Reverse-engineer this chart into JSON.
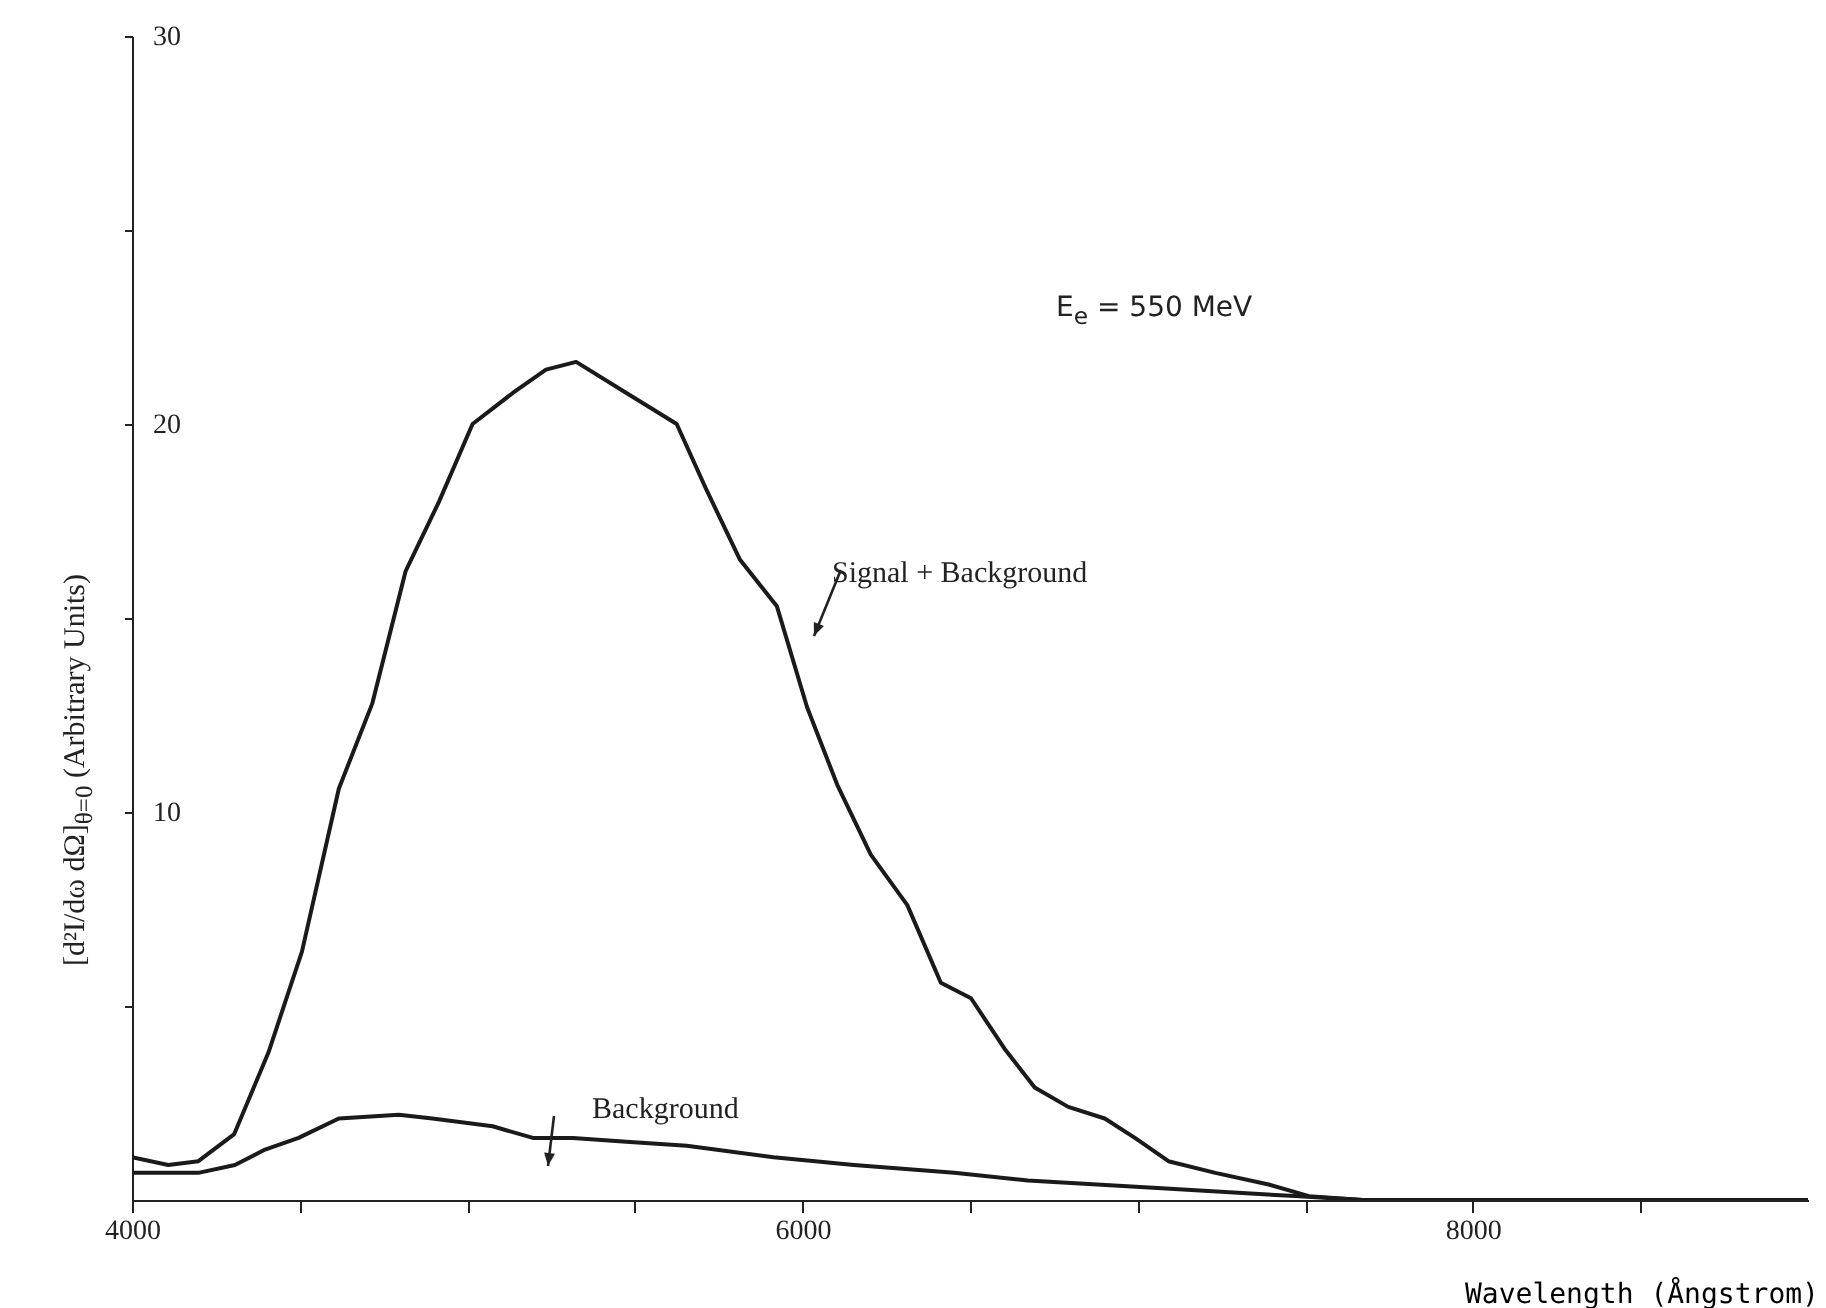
{
  "chart_data": {
    "type": "line",
    "xlabel": "Wavelength (Ångstrom)",
    "ylabel": "[d²I/dω dΩ]$_{θ=0}$ (Arbitrary Units)",
    "annotations": [
      "E$_{e}$ = 550 MeV"
    ],
    "xlim": [
      4000,
      9000
    ],
    "ylim": [
      0,
      30
    ],
    "xticks": [
      4000,
      {
        "value": 4500,
        "label": null
      },
      {
        "value": 5000,
        "label": null
      },
      {
        "value": 5500,
        "label": null
      },
      6000,
      {
        "value": 6500,
        "label": null
      },
      {
        "value": 7000,
        "label": null
      },
      {
        "value": 7500,
        "label": null
      },
      8000,
      {
        "value": 8500,
        "label": null
      }
    ],
    "yticks": [
      {
        "value": 5,
        "label": null
      },
      10,
      {
        "value": 15,
        "label": null
      },
      20,
      {
        "value": 25,
        "label": null
      },
      30
    ],
    "marker": "none",
    "line_style": "solid",
    "series": [
      {
        "name": "Signal + Background",
        "color": "#1a1a1a",
        "x": [
          4000,
          4108,
          4198,
          4305,
          4407,
          4507,
          4617,
          4717,
          4816,
          4916,
          5016,
          5136,
          5235,
          5325,
          5475,
          5625,
          5714,
          5814,
          5924,
          6014,
          6104,
          6204,
          6313,
          6413,
          6503,
          6603,
          6693,
          6793,
          6902,
          6992,
          7092,
          7232,
          7391,
          7511,
          7671,
          8000,
          8500,
          9000
        ],
        "values": [
          1.1,
          0.9,
          1.0,
          1.7,
          3.8,
          6.4,
          10.6,
          12.8,
          16.2,
          18.0,
          20.0,
          20.8,
          21.4,
          21.6,
          20.8,
          20.0,
          18.3,
          16.5,
          15.3,
          12.7,
          10.7,
          8.9,
          7.6,
          5.6,
          5.2,
          3.9,
          2.9,
          2.4,
          2.1,
          1.6,
          1.0,
          0.7,
          0.4,
          0.1,
          0,
          0,
          0,
          0
        ]
      },
      {
        "name": "Background",
        "color": "#1a1a1a",
        "x": [
          4000,
          4198,
          4307,
          4397,
          4497,
          4617,
          4796,
          4896,
          5076,
          5196,
          5315,
          5475,
          5655,
          5914,
          6154,
          6453,
          6673,
          7072,
          7471,
          7671,
          8000,
          8500,
          9000
        ],
        "values": [
          0.7,
          0.7,
          0.9,
          1.3,
          1.6,
          2.1,
          2.2,
          2.1,
          1.9,
          1.6,
          1.6,
          1.5,
          1.4,
          1.1,
          0.9,
          0.7,
          0.5,
          0.3,
          0.1,
          0,
          0,
          0,
          0
        ]
      }
    ]
  }
}
